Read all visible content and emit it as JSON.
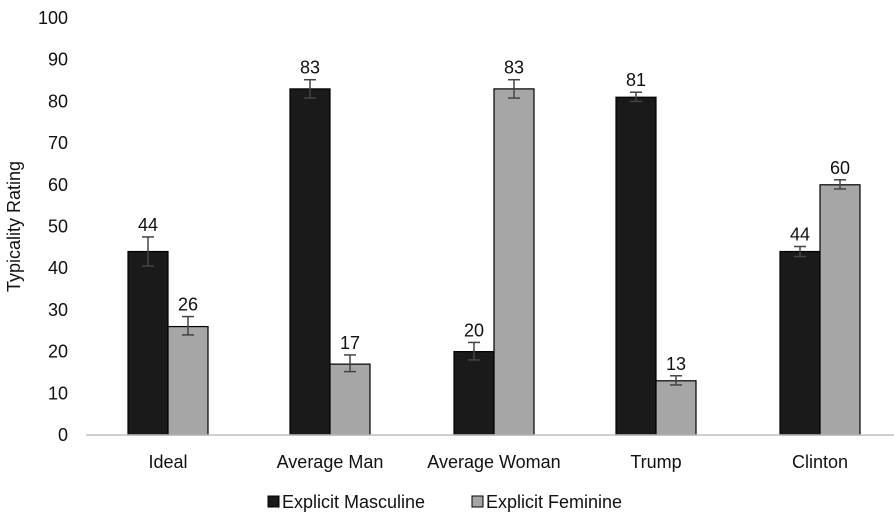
{
  "chart_data": {
    "type": "bar",
    "title": "",
    "xlabel": "",
    "ylabel": "Typicality Rating",
    "ylim": [
      0,
      100
    ],
    "yticks": [
      0,
      10,
      20,
      30,
      40,
      50,
      60,
      70,
      80,
      90,
      100
    ],
    "grid": false,
    "legend_position": "bottom",
    "categories": [
      "Ideal",
      "Average Man",
      "Average Woman",
      "Trump",
      "Clinton"
    ],
    "series": [
      {
        "name": "Explicit Masculine",
        "color": "#1a1a1a",
        "values": [
          44,
          83,
          20,
          81,
          44
        ],
        "error_low": [
          40.5,
          80.8,
          18.0,
          80.0,
          42.8
        ],
        "error_high": [
          47.5,
          85.2,
          22.2,
          82.2,
          45.2
        ]
      },
      {
        "name": "Explicit Feminine",
        "color": "#a6a6a6",
        "values": [
          26,
          17,
          83,
          13,
          60
        ],
        "error_low": [
          24.0,
          15.2,
          80.8,
          12.0,
          59.0
        ],
        "error_high": [
          28.4,
          19.2,
          85.2,
          14.2,
          61.2
        ]
      }
    ]
  }
}
